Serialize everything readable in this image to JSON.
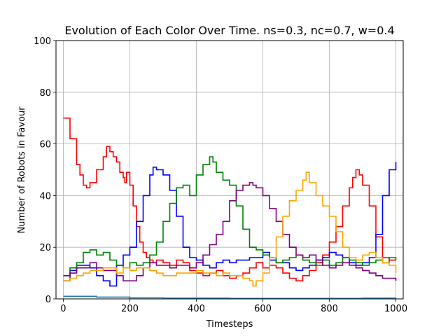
{
  "chart_data": {
    "type": "line",
    "title": "Evolution of Each Color Over Time. ns=0.3, nc=0.7, w=0.4",
    "xlabel": "Timesteps",
    "ylabel": "Number of Robots in Favour",
    "xlim": [
      -22,
      1022
    ],
    "ylim": [
      0,
      100
    ],
    "xticks": [
      0,
      200,
      400,
      600,
      800,
      1000
    ],
    "yticks": [
      0,
      20,
      40,
      60,
      80,
      100
    ],
    "grid": true,
    "series": [
      {
        "color": "#ff0000",
        "x": [
          0,
          20,
          40,
          50,
          60,
          70,
          80,
          100,
          120,
          130,
          140,
          150,
          160,
          170,
          180,
          185,
          190,
          200,
          210,
          220,
          230,
          240,
          250,
          260,
          270,
          280,
          300,
          320,
          340,
          360,
          380,
          400,
          420,
          440,
          460,
          480,
          500,
          520,
          540,
          560,
          580,
          600,
          620,
          640,
          660,
          680,
          700,
          720,
          740,
          760,
          780,
          800,
          820,
          840,
          860,
          870,
          880,
          890,
          900,
          920,
          940,
          960,
          980,
          1000
        ],
        "y": [
          70,
          62,
          52,
          48,
          44,
          43,
          45,
          50,
          55,
          59,
          57,
          55,
          53,
          49,
          47,
          45,
          49,
          44,
          36,
          28,
          22,
          18,
          16,
          15,
          14,
          15,
          14,
          13,
          15,
          14,
          11,
          10,
          9,
          10,
          11,
          9,
          8,
          9,
          10,
          12,
          14,
          12,
          13,
          12,
          10,
          8,
          7,
          9,
          11,
          14,
          17,
          22,
          28,
          36,
          43,
          47,
          50,
          48,
          44,
          36,
          24,
          16,
          15,
          15
        ]
      },
      {
        "color": "#0000ff",
        "x": [
          0,
          20,
          40,
          60,
          80,
          100,
          120,
          140,
          160,
          180,
          200,
          220,
          240,
          260,
          270,
          280,
          300,
          320,
          340,
          360,
          380,
          400,
          420,
          440,
          460,
          480,
          500,
          520,
          540,
          560,
          580,
          600,
          620,
          640,
          660,
          680,
          700,
          720,
          740,
          760,
          780,
          800,
          820,
          840,
          860,
          880,
          900,
          920,
          940,
          960,
          980,
          1000
        ],
        "y": [
          7,
          11,
          13,
          13,
          12,
          9,
          7,
          5,
          13,
          17,
          20,
          30,
          40,
          48,
          51,
          50,
          48,
          42,
          32,
          20,
          16,
          15,
          13,
          12,
          14,
          15,
          14,
          15,
          15,
          16,
          16,
          18,
          15,
          14,
          14,
          12,
          11,
          12,
          13,
          15,
          16,
          18,
          17,
          16,
          14,
          13,
          14,
          16,
          25,
          40,
          50,
          53
        ]
      },
      {
        "color": "#008000",
        "x": [
          0,
          20,
          40,
          60,
          80,
          100,
          120,
          140,
          160,
          180,
          200,
          220,
          240,
          260,
          280,
          300,
          320,
          340,
          360,
          380,
          400,
          420,
          440,
          450,
          460,
          480,
          500,
          520,
          540,
          560,
          580,
          600,
          620,
          640,
          660,
          680,
          700,
          720,
          740,
          760,
          780,
          800,
          820,
          840,
          860,
          880,
          900,
          920,
          940,
          960,
          980,
          1000
        ],
        "y": [
          9,
          12,
          14,
          18,
          19,
          17,
          18,
          15,
          13,
          12,
          14,
          13,
          14,
          17,
          22,
          30,
          37,
          43,
          44,
          40,
          48,
          52,
          55,
          53,
          49,
          46,
          44,
          36,
          27,
          20,
          19,
          17,
          16,
          14,
          15,
          16,
          17,
          15,
          14,
          13,
          15,
          13,
          14,
          16,
          15,
          14,
          13,
          14,
          15,
          14,
          16,
          15
        ]
      },
      {
        "color": "#800080",
        "x": [
          0,
          20,
          40,
          60,
          80,
          100,
          120,
          140,
          160,
          180,
          200,
          220,
          240,
          260,
          280,
          300,
          320,
          340,
          360,
          380,
          400,
          420,
          440,
          460,
          480,
          500,
          520,
          540,
          560,
          570,
          580,
          600,
          620,
          640,
          660,
          680,
          700,
          720,
          740,
          760,
          780,
          800,
          820,
          840,
          860,
          880,
          900,
          920,
          940,
          960,
          980,
          1000
        ],
        "y": [
          9,
          10,
          12,
          12,
          14,
          12,
          11,
          11,
          9,
          7,
          7,
          9,
          12,
          14,
          13,
          13,
          12,
          13,
          13,
          12,
          14,
          17,
          21,
          25,
          30,
          38,
          42,
          44,
          45,
          44,
          43,
          40,
          35,
          30,
          25,
          20,
          17,
          16,
          17,
          15,
          13,
          12,
          13,
          14,
          13,
          12,
          11,
          10,
          9,
          8,
          8,
          7
        ]
      },
      {
        "color": "#ffa500",
        "x": [
          0,
          20,
          40,
          60,
          80,
          100,
          120,
          140,
          160,
          180,
          200,
          220,
          240,
          260,
          280,
          300,
          320,
          340,
          360,
          380,
          400,
          420,
          440,
          460,
          480,
          500,
          520,
          540,
          560,
          570,
          580,
          600,
          620,
          640,
          660,
          680,
          700,
          720,
          730,
          740,
          760,
          780,
          800,
          820,
          840,
          860,
          880,
          900,
          920,
          940,
          960,
          980,
          1000
        ],
        "y": [
          7,
          8,
          9,
          10,
          11,
          11,
          12,
          12,
          10,
          12,
          11,
          12,
          12,
          11,
          10,
          9,
          9,
          10,
          10,
          10,
          11,
          10,
          10,
          9,
          10,
          9,
          9,
          8,
          7,
          5,
          7,
          10,
          16,
          24,
          32,
          38,
          42,
          46,
          49,
          45,
          40,
          36,
          32,
          26,
          20,
          16,
          15,
          17,
          18,
          16,
          14,
          13,
          10
        ]
      },
      {
        "color": "#1f77b4",
        "x": [
          0,
          100,
          200,
          300,
          400,
          500,
          600,
          700,
          800,
          900,
          1000
        ],
        "y": [
          1,
          0.7,
          0.4,
          0.3,
          0.3,
          0.2,
          0.2,
          0.2,
          0.2,
          0.3,
          0.5
        ]
      }
    ]
  }
}
